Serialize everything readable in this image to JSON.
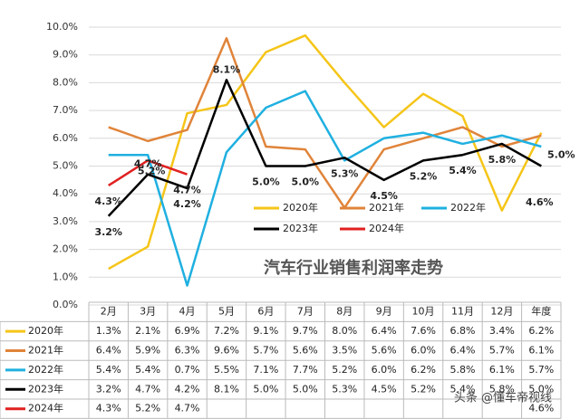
{
  "chart_data": {
    "type": "line",
    "title": "汽车行业销售利润率走势",
    "categories": [
      "2月",
      "3月",
      "4月",
      "5月",
      "6月",
      "7月",
      "8月",
      "9月",
      "10月",
      "11月",
      "12月",
      "年度"
    ],
    "series": [
      {
        "name": "2020年",
        "color": "#f5c518",
        "values": [
          1.3,
          2.1,
          6.9,
          7.2,
          9.1,
          9.7,
          8.0,
          6.4,
          7.6,
          6.8,
          3.4,
          6.2
        ],
        "value_labels": [
          "1.3%",
          "2.1%",
          "6.9%",
          "7.2%",
          "9.1%",
          "9.7%",
          "8.0%",
          "6.4%",
          "7.6%",
          "6.8%",
          "3.4%",
          "6.2%"
        ]
      },
      {
        "name": "2021年",
        "color": "#e0843a",
        "values": [
          6.4,
          5.9,
          6.3,
          9.6,
          5.7,
          5.6,
          3.5,
          5.6,
          6.0,
          6.4,
          5.7,
          6.1
        ],
        "value_labels": [
          "6.4%",
          "5.9%",
          "6.3%",
          "9.6%",
          "5.7%",
          "5.6%",
          "3.5%",
          "5.6%",
          "6.0%",
          "6.4%",
          "5.7%",
          "6.1%"
        ]
      },
      {
        "name": "2022年",
        "color": "#1fb0e0",
        "values": [
          5.4,
          5.4,
          0.7,
          5.5,
          7.1,
          7.7,
          5.2,
          6.0,
          6.2,
          5.8,
          6.1,
          5.7
        ],
        "value_labels": [
          "5.4%",
          "5.4%",
          "0.7%",
          "5.5%",
          "7.1%",
          "7.7%",
          "5.2%",
          "6.0%",
          "6.2%",
          "5.8%",
          "6.1%",
          "5.7%"
        ]
      },
      {
        "name": "2023年",
        "color": "#000000",
        "values": [
          3.2,
          4.7,
          4.2,
          8.1,
          5.0,
          5.0,
          5.3,
          4.5,
          5.2,
          5.4,
          5.8,
          5.0
        ],
        "value_labels": [
          "3.2%",
          "4.7%",
          "4.2%",
          "8.1%",
          "5.0%",
          "5.0%",
          "5.3%",
          "4.5%",
          "5.2%",
          "5.4%",
          "5.8%",
          "5.0%"
        ]
      },
      {
        "name": "2024年",
        "color": "#e02020",
        "values": [
          4.3,
          5.2,
          4.7,
          null,
          null,
          null,
          null,
          null,
          null,
          null,
          null,
          4.6
        ],
        "value_labels": [
          "4.3%",
          "5.2%",
          "4.7%",
          null,
          null,
          null,
          null,
          null,
          null,
          null,
          null,
          "4.6%"
        ]
      }
    ],
    "ylim": [
      0,
      10
    ],
    "yticks": [
      {
        "value": 0,
        "label": "0.0%"
      },
      {
        "value": 1,
        "label": "1.0%"
      },
      {
        "value": 2,
        "label": "2.0%"
      },
      {
        "value": 3,
        "label": "3.0%"
      },
      {
        "value": 4,
        "label": "4.0%"
      },
      {
        "value": 5,
        "label": "5.0%"
      },
      {
        "value": 6,
        "label": "6.0%"
      },
      {
        "value": 7,
        "label": "7.0%"
      },
      {
        "value": 8,
        "label": "8.0%"
      },
      {
        "value": 9,
        "label": "9.0%"
      },
      {
        "value": 10,
        "label": "10.0%"
      }
    ],
    "grid": true,
    "watermark": "头条 @懂车帝视线"
  }
}
